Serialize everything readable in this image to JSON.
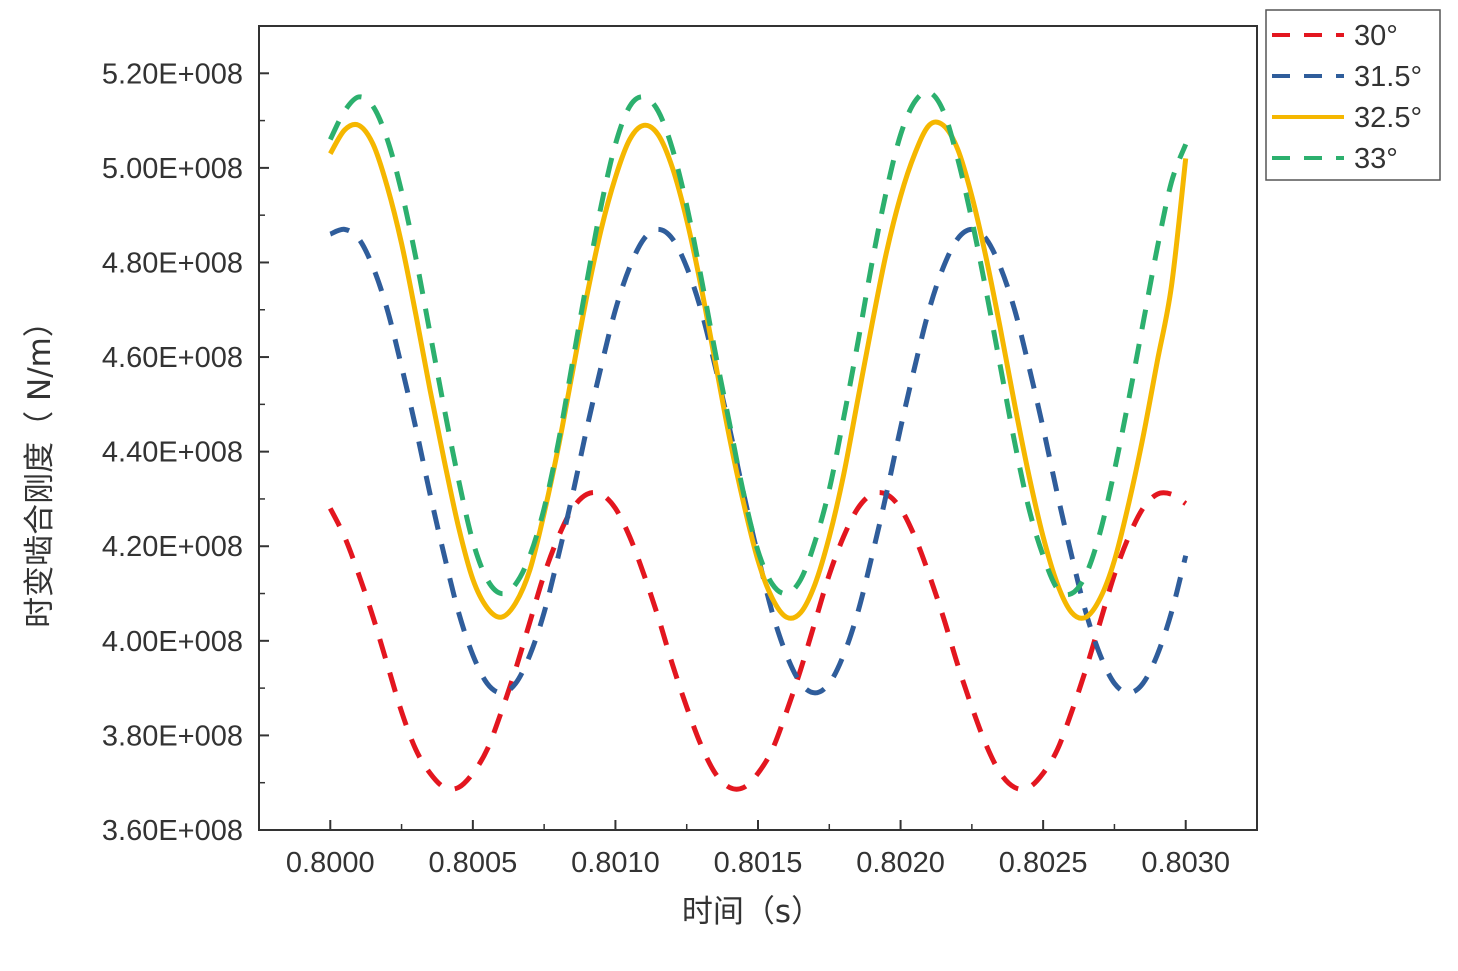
{
  "chart_data": {
    "type": "line",
    "xlabel": "时间（s）",
    "ylabel": "时变啮合刚度（ N/m）",
    "xlim": [
      0.79975,
      0.80325
    ],
    "ylim": [
      360000000,
      530000000
    ],
    "x_ticks": [
      0.8,
      0.8005,
      0.801,
      0.8015,
      0.802,
      0.8025,
      0.803
    ],
    "x_tick_labels": [
      "0.8000",
      "0.8005",
      "0.8010",
      "0.8015",
      "0.8020",
      "0.8025",
      "0.8030"
    ],
    "y_ticks": [
      360000000,
      380000000,
      400000000,
      420000000,
      440000000,
      460000000,
      480000000,
      500000000,
      520000000
    ],
    "y_tick_labels": [
      "3.60E+008",
      "3.80E+008",
      "4.00E+008",
      "4.20E+008",
      "4.40E+008",
      "4.60E+008",
      "4.80E+008",
      "5.00E+008",
      "5.20E+008"
    ],
    "grid": false,
    "legend_position": "outside top-right",
    "series": [
      {
        "name": "30°",
        "color": "#e3161f",
        "dash": "dashed",
        "x": [
          0.8,
          0.80005,
          0.8001,
          0.80015,
          0.8002,
          0.80025,
          0.8003,
          0.80035,
          0.8004,
          0.80045,
          0.8005,
          0.80055,
          0.8006,
          0.80065,
          0.8007,
          0.80075,
          0.8008,
          0.80085,
          0.8009,
          0.80095,
          0.801,
          0.80105,
          0.8011,
          0.80115,
          0.8012,
          0.80125,
          0.8013,
          0.80135,
          0.8014,
          0.80145,
          0.8015,
          0.80155,
          0.8016,
          0.80165,
          0.8017,
          0.80175,
          0.8018,
          0.80185,
          0.8019,
          0.80195,
          0.802,
          0.80205,
          0.8021,
          0.80215,
          0.8022,
          0.80225,
          0.8023,
          0.80235,
          0.8024,
          0.80245,
          0.8025,
          0.80255,
          0.8026,
          0.80265,
          0.8027,
          0.80275,
          0.8028,
          0.80285,
          0.8029,
          0.80295,
          0.803
        ],
        "y": [
          428000000,
          422000000,
          414000000,
          405000000,
          395000000,
          385000000,
          377000000,
          372000000,
          369000000,
          369000000,
          372000000,
          377000000,
          385000000,
          394000000,
          404000000,
          414000000,
          422000000,
          428000000,
          431000000,
          431000000,
          428000000,
          422000000,
          414000000,
          405000000,
          395000000,
          386000000,
          378000000,
          372000000,
          369000000,
          369000000,
          372000000,
          377000000,
          385000000,
          394000000,
          404000000,
          414000000,
          422000000,
          428000000,
          431000000,
          431000000,
          428000000,
          422000000,
          414000000,
          405000000,
          395000000,
          386000000,
          378000000,
          372000000,
          369000000,
          369000000,
          372000000,
          377000000,
          385000000,
          394000000,
          404000000,
          414000000,
          422000000,
          428000000,
          431000000,
          431000000,
          429000000
        ]
      },
      {
        "name": "31.5°",
        "color": "#2f5d9b",
        "dash": "dashed",
        "x": [
          0.8,
          0.80005,
          0.8001,
          0.80015,
          0.8002,
          0.80025,
          0.8003,
          0.80035,
          0.8004,
          0.80045,
          0.8005,
          0.80055,
          0.8006,
          0.80065,
          0.8007,
          0.80075,
          0.8008,
          0.80085,
          0.8009,
          0.80095,
          0.801,
          0.80105,
          0.8011,
          0.80115,
          0.8012,
          0.80125,
          0.8013,
          0.80135,
          0.8014,
          0.80145,
          0.8015,
          0.80155,
          0.8016,
          0.80165,
          0.8017,
          0.80175,
          0.8018,
          0.80185,
          0.8019,
          0.80195,
          0.802,
          0.80205,
          0.8021,
          0.80215,
          0.8022,
          0.80225,
          0.8023,
          0.80235,
          0.8024,
          0.80245,
          0.8025,
          0.80255,
          0.8026,
          0.80265,
          0.8027,
          0.80275,
          0.8028,
          0.80285,
          0.8029,
          0.80295,
          0.803
        ],
        "y": [
          486000000,
          487000000,
          485000000,
          479000000,
          470000000,
          458000000,
          445000000,
          431000000,
          418000000,
          406000000,
          397000000,
          391000000,
          389000000,
          391000000,
          397000000,
          406000000,
          418000000,
          431000000,
          445000000,
          458000000,
          470000000,
          479000000,
          485000000,
          487000000,
          485000000,
          479000000,
          470000000,
          458000000,
          445000000,
          431000000,
          418000000,
          406000000,
          397000000,
          391000000,
          389000000,
          391000000,
          397000000,
          406000000,
          418000000,
          431000000,
          445000000,
          458000000,
          470000000,
          479000000,
          485000000,
          487000000,
          485000000,
          479000000,
          470000000,
          458000000,
          445000000,
          431000000,
          418000000,
          406000000,
          397000000,
          391000000,
          389000000,
          391000000,
          397000000,
          406000000,
          418000000
        ]
      },
      {
        "name": "32.5°",
        "color": "#f5b700",
        "dash": "solid",
        "x": [
          0.8,
          0.80005,
          0.8001,
          0.80015,
          0.8002,
          0.80025,
          0.8003,
          0.80035,
          0.8004,
          0.80045,
          0.8005,
          0.80055,
          0.8006,
          0.80065,
          0.8007,
          0.80075,
          0.8008,
          0.80085,
          0.8009,
          0.80095,
          0.801,
          0.80105,
          0.8011,
          0.80115,
          0.8012,
          0.80125,
          0.8013,
          0.80135,
          0.8014,
          0.80145,
          0.8015,
          0.80155,
          0.8016,
          0.80165,
          0.8017,
          0.80175,
          0.8018,
          0.80185,
          0.8019,
          0.80195,
          0.802,
          0.80205,
          0.8021,
          0.80215,
          0.8022,
          0.80225,
          0.8023,
          0.80235,
          0.8024,
          0.80245,
          0.8025,
          0.80255,
          0.8026,
          0.80265,
          0.8027,
          0.80275,
          0.8028,
          0.80285,
          0.8029,
          0.80295,
          0.803
        ],
        "y": [
          503000000,
          508000000,
          509000000,
          505000000,
          496000000,
          484000000,
          469000000,
          453000000,
          438000000,
          424000000,
          413000000,
          407000000,
          405000000,
          408000000,
          415000000,
          427000000,
          441000000,
          457000000,
          473000000,
          487000000,
          498000000,
          506000000,
          509000000,
          507000000,
          500000000,
          489000000,
          475000000,
          459000000,
          443000000,
          429000000,
          417000000,
          409000000,
          405000000,
          406000000,
          412000000,
          422000000,
          435000000,
          451000000,
          467000000,
          482000000,
          494000000,
          503000000,
          509000000,
          509000000,
          504000000,
          494000000,
          481000000,
          466000000,
          450000000,
          435000000,
          422000000,
          412000000,
          406000000,
          405000000,
          409000000,
          417000000,
          429000000,
          443000000,
          459000000,
          475000000,
          502000000
        ]
      },
      {
        "name": "33°",
        "color": "#2cb06e",
        "dash": "dashed",
        "x": [
          0.8,
          0.80005,
          0.8001,
          0.80015,
          0.8002,
          0.80025,
          0.8003,
          0.80035,
          0.8004,
          0.80045,
          0.8005,
          0.80055,
          0.8006,
          0.80065,
          0.8007,
          0.80075,
          0.8008,
          0.80085,
          0.8009,
          0.80095,
          0.801,
          0.80105,
          0.8011,
          0.80115,
          0.8012,
          0.80125,
          0.8013,
          0.80135,
          0.8014,
          0.80145,
          0.8015,
          0.80155,
          0.8016,
          0.80165,
          0.8017,
          0.80175,
          0.8018,
          0.80185,
          0.8019,
          0.80195,
          0.802,
          0.80205,
          0.8021,
          0.80215,
          0.8022,
          0.80225,
          0.8023,
          0.80235,
          0.8024,
          0.80245,
          0.8025,
          0.80255,
          0.8026,
          0.80265,
          0.8027,
          0.80275,
          0.8028,
          0.80285,
          0.8029,
          0.80295,
          0.803
        ],
        "y": [
          506000000,
          512000000,
          515000000,
          513000000,
          506000000,
          495000000,
          481000000,
          465000000,
          449000000,
          434000000,
          421000000,
          413000000,
          410000000,
          412000000,
          418000000,
          428000000,
          442000000,
          459000000,
          476000000,
          492000000,
          505000000,
          513000000,
          515000000,
          512000000,
          504000000,
          492000000,
          477000000,
          461000000,
          446000000,
          431000000,
          419000000,
          412000000,
          410000000,
          413000000,
          421000000,
          432000000,
          447000000,
          463000000,
          480000000,
          495000000,
          507000000,
          514000000,
          516000000,
          512000000,
          502000000,
          489000000,
          474000000,
          458000000,
          442000000,
          428000000,
          418000000,
          411000000,
          410000000,
          414000000,
          423000000,
          436000000,
          451000000,
          467000000,
          483000000,
          497000000,
          505000000
        ]
      }
    ]
  }
}
